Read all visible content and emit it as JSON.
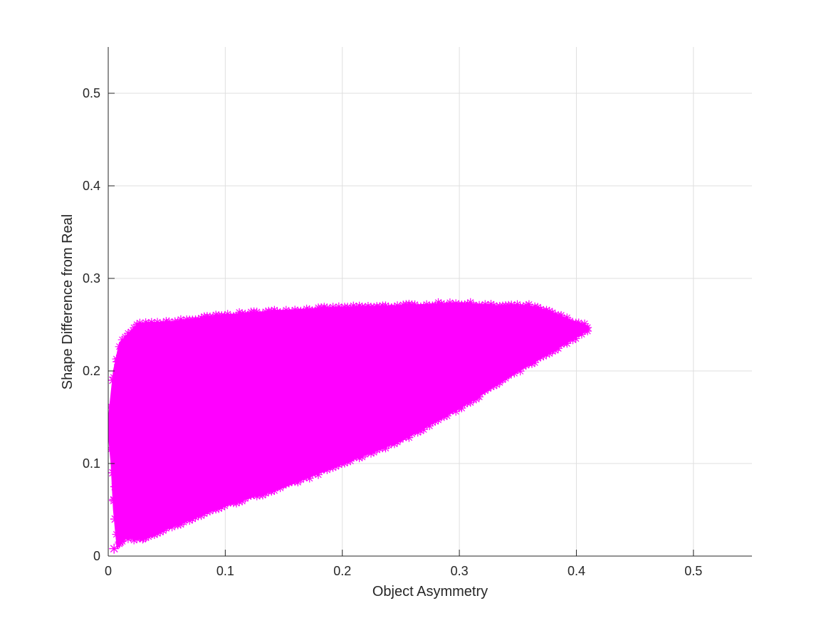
{
  "chart_data": {
    "type": "scatter",
    "title": "",
    "xlabel": "Object Asymmetry",
    "ylabel": "Shape Difference from Real",
    "xlim": [
      0,
      0.55
    ],
    "ylim": [
      0,
      0.55
    ],
    "x_ticks": [
      0,
      0.1,
      0.2,
      0.3,
      0.4,
      0.5
    ],
    "y_ticks": [
      0,
      0.1,
      0.2,
      0.3,
      0.4,
      0.5
    ],
    "x_tick_labels": [
      "0",
      "0.1",
      "0.2",
      "0.3",
      "0.4",
      "0.5"
    ],
    "y_tick_labels": [
      "0",
      "0.1",
      "0.2",
      "0.3",
      "0.4",
      "0.5"
    ],
    "grid": true,
    "marker": "asterisk",
    "color": "#ff00ff",
    "series": [
      {
        "region_upper_boundary": [
          [
            0.0,
            0.14
          ],
          [
            0.005,
            0.2
          ],
          [
            0.01,
            0.23
          ],
          [
            0.025,
            0.25
          ],
          [
            0.05,
            0.252
          ],
          [
            0.1,
            0.26
          ],
          [
            0.15,
            0.265
          ],
          [
            0.2,
            0.268
          ],
          [
            0.25,
            0.27
          ],
          [
            0.3,
            0.273
          ],
          [
            0.33,
            0.27
          ],
          [
            0.36,
            0.27
          ],
          [
            0.38,
            0.262
          ],
          [
            0.4,
            0.252
          ],
          [
            0.41,
            0.248
          ]
        ],
        "region_lower_boundary": [
          [
            0.0,
            0.14
          ],
          [
            0.003,
            0.1
          ],
          [
            0.005,
            0.05
          ],
          [
            0.008,
            0.01
          ],
          [
            0.015,
            0.02
          ],
          [
            0.03,
            0.018
          ],
          [
            0.05,
            0.03
          ],
          [
            0.1,
            0.055
          ],
          [
            0.15,
            0.075
          ],
          [
            0.2,
            0.1
          ],
          [
            0.25,
            0.125
          ],
          [
            0.3,
            0.16
          ],
          [
            0.35,
            0.2
          ],
          [
            0.38,
            0.222
          ],
          [
            0.41,
            0.245
          ]
        ],
        "sparse_points": [
          [
            0.005,
            0.008
          ],
          [
            0.01,
            0.015
          ],
          [
            0.012,
            0.022
          ],
          [
            0.02,
            0.03
          ],
          [
            0.018,
            0.045
          ],
          [
            0.006,
            0.04
          ],
          [
            0.01,
            0.052
          ],
          [
            0.025,
            0.05
          ],
          [
            0.032,
            0.035
          ],
          [
            0.005,
            0.06
          ],
          [
            0.015,
            0.065
          ],
          [
            0.02,
            0.072
          ],
          [
            0.006,
            0.075
          ],
          [
            0.01,
            0.085
          ],
          [
            0.004,
            0.09
          ],
          [
            0.015,
            0.095
          ],
          [
            0.03,
            0.055
          ],
          [
            0.035,
            0.07
          ],
          [
            0.028,
            0.085
          ],
          [
            0.022,
            0.1
          ],
          [
            0.04,
            0.045
          ],
          [
            0.045,
            0.03
          ],
          [
            0.05,
            0.06
          ],
          [
            0.012,
            0.11
          ],
          [
            0.008,
            0.125
          ],
          [
            0.02,
            0.12
          ],
          [
            0.003,
            0.15
          ],
          [
            0.006,
            0.17
          ],
          [
            0.004,
            0.19
          ],
          [
            0.008,
            0.21
          ],
          [
            0.012,
            0.225
          ],
          [
            0.015,
            0.228
          ],
          [
            0.03,
            0.02
          ],
          [
            0.038,
            0.025
          ]
        ]
      }
    ]
  }
}
